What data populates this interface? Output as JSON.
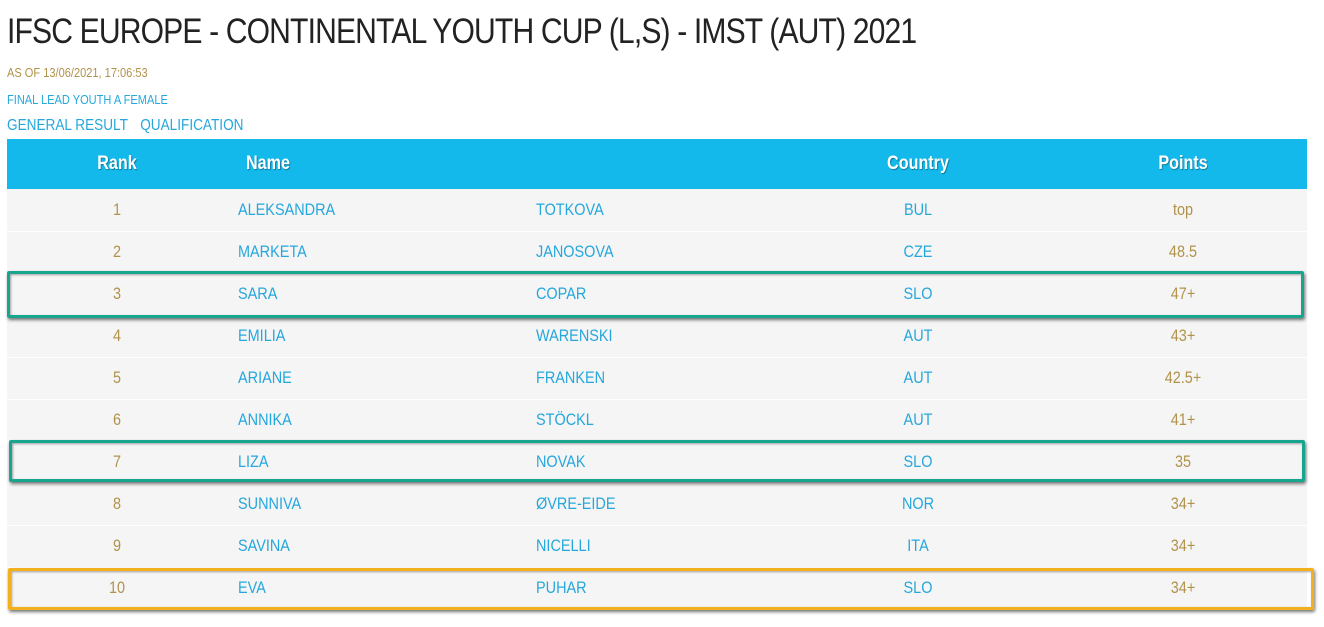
{
  "header": {
    "title": "IFSC EUROPE - CONTINENTAL YOUTH CUP (L,S) - IMST (AUT) 2021",
    "as_of": "AS OF 13/06/2021, 17:06:53",
    "event": "FINAL LEAD YOUTH A FEMALE",
    "nav": [
      "GENERAL RESULT",
      "QUALIFICATION"
    ]
  },
  "table": {
    "columns": {
      "rank": "Rank",
      "name": "Name",
      "country": "Country",
      "points": "Points"
    },
    "rows": [
      {
        "rank": "1",
        "first": "ALEKSANDRA",
        "last": "TOTKOVA",
        "country": "BUL",
        "points": "top"
      },
      {
        "rank": "2",
        "first": "MARKETA",
        "last": "JANOSOVA",
        "country": "CZE",
        "points": "48.5"
      },
      {
        "rank": "3",
        "first": "SARA",
        "last": "COPAR",
        "country": "SLO",
        "points": "47+"
      },
      {
        "rank": "4",
        "first": "EMILIA",
        "last": "WARENSKI",
        "country": "AUT",
        "points": "43+"
      },
      {
        "rank": "5",
        "first": "ARIANE",
        "last": "FRANKEN",
        "country": "AUT",
        "points": "42.5+"
      },
      {
        "rank": "6",
        "first": "ANNIKA",
        "last": "STÖCKL",
        "country": "AUT",
        "points": "41+"
      },
      {
        "rank": "7",
        "first": "LIZA",
        "last": "NOVAK",
        "country": "SLO",
        "points": "35"
      },
      {
        "rank": "8",
        "first": "SUNNIVA",
        "last": "ØVRE-EIDE",
        "country": "NOR",
        "points": "34+"
      },
      {
        "rank": "9",
        "first": "SAVINA",
        "last": "NICELLI",
        "country": "ITA",
        "points": "34+"
      },
      {
        "rank": "10",
        "first": "EVA",
        "last": "PUHAR",
        "country": "SLO",
        "points": "34+"
      }
    ]
  },
  "colors": {
    "header_bg": "#14b9ec",
    "link_blue": "#25a7dd",
    "gold_text": "#b1924a",
    "highlight_green": "#17a58e",
    "highlight_yellow": "#f2b01e"
  }
}
